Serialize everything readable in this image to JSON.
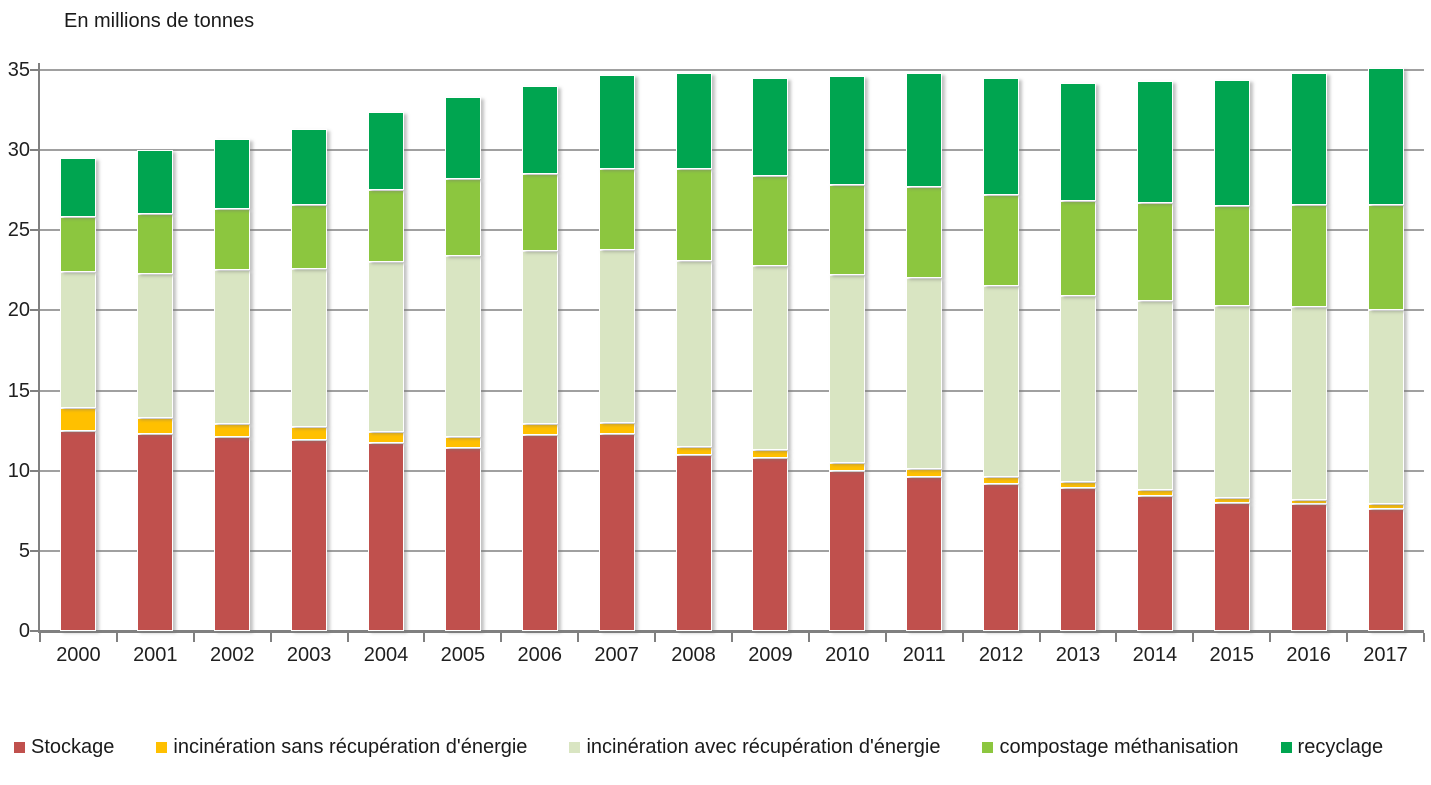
{
  "title": "En millions de tonnes",
  "chart_data": {
    "type": "bar",
    "stacked": true,
    "title": "En millions de tonnes",
    "xlabel": "",
    "ylabel": "En millions de tonnes",
    "ylim": [
      0,
      35
    ],
    "yticks": [
      0,
      5,
      10,
      15,
      20,
      25,
      30,
      35
    ],
    "grid": true,
    "legend_position": "bottom",
    "categories": [
      "2000",
      "2001",
      "2002",
      "2003",
      "2004",
      "2005",
      "2006",
      "2007",
      "2008",
      "2009",
      "2010",
      "2011",
      "2012",
      "2013",
      "2014",
      "2015",
      "2016",
      "2017"
    ],
    "series": [
      {
        "name": "Stockage",
        "color": "#c0504d",
        "values": [
          12.5,
          12.3,
          12.1,
          11.9,
          11.7,
          11.4,
          12.2,
          12.3,
          11.0,
          10.8,
          10.0,
          9.6,
          9.2,
          8.9,
          8.4,
          8.0,
          7.9,
          7.6
        ]
      },
      {
        "name": "incinération sans récupération d'énergie",
        "color": "#ffc000",
        "values": [
          1.4,
          1.0,
          0.8,
          0.8,
          0.7,
          0.7,
          0.7,
          0.7,
          0.5,
          0.5,
          0.5,
          0.5,
          0.4,
          0.4,
          0.4,
          0.3,
          0.3,
          0.3
        ]
      },
      {
        "name": "incinération avec récupération d'énergie",
        "color": "#d9e5c2",
        "values": [
          8.5,
          9.0,
          9.6,
          9.9,
          10.6,
          11.3,
          10.8,
          10.8,
          11.6,
          11.5,
          11.7,
          11.9,
          11.9,
          11.6,
          11.8,
          12.0,
          12.0,
          12.1
        ]
      },
      {
        "name": "compostage méthanisation",
        "color": "#8cc63f",
        "values": [
          3.4,
          3.7,
          3.8,
          4.0,
          4.5,
          4.8,
          4.8,
          5.0,
          5.7,
          5.6,
          5.6,
          5.7,
          5.7,
          5.9,
          6.1,
          6.2,
          6.4,
          6.6
        ]
      },
      {
        "name": "recyclage",
        "color": "#00a550",
        "values": [
          3.7,
          4.0,
          4.4,
          4.7,
          4.9,
          5.1,
          5.5,
          5.9,
          6.0,
          6.1,
          6.8,
          7.1,
          7.3,
          7.4,
          7.6,
          7.9,
          8.2,
          8.5
        ]
      }
    ],
    "totals": [
      29.5,
      30.0,
      30.7,
      31.3,
      32.4,
      33.3,
      34.0,
      34.7,
      34.8,
      34.5,
      34.6,
      34.8,
      34.5,
      34.2,
      34.3,
      34.4,
      34.8,
      35.1
    ]
  }
}
